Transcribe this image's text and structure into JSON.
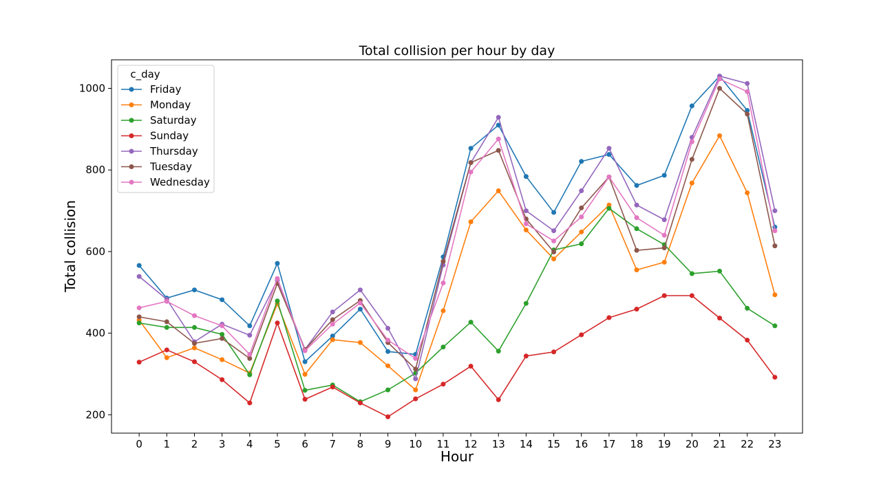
{
  "chart_data": {
    "type": "line",
    "title": "Total collision per hour by day",
    "xlabel": "Hour",
    "ylabel": "Total collision",
    "x": [
      0,
      1,
      2,
      3,
      4,
      5,
      6,
      7,
      8,
      9,
      10,
      11,
      12,
      13,
      14,
      15,
      16,
      17,
      18,
      19,
      20,
      21,
      22,
      23
    ],
    "xlim": [
      -1,
      24
    ],
    "ylim": [
      155,
      1070
    ],
    "yticks": [
      200,
      400,
      600,
      800,
      1000
    ],
    "grid": false,
    "legend": {
      "title": "c_day",
      "position": "upper-left"
    },
    "series": [
      {
        "name": "Friday",
        "color": "#1f77b4",
        "values": [
          566,
          486,
          506,
          482,
          418,
          571,
          330,
          393,
          459,
          355,
          348,
          587,
          853,
          910,
          784,
          696,
          821,
          838,
          762,
          787,
          957,
          1030,
          946,
          660
        ]
      },
      {
        "name": "Monday",
        "color": "#ff7f0e",
        "values": [
          432,
          340,
          364,
          335,
          302,
          472,
          299,
          384,
          377,
          320,
          261,
          455,
          673,
          749,
          653,
          582,
          648,
          714,
          555,
          574,
          768,
          884,
          744,
          494
        ]
      },
      {
        "name": "Saturday",
        "color": "#2ca02c",
        "values": [
          425,
          414,
          414,
          397,
          298,
          479,
          260,
          273,
          232,
          261,
          302,
          366,
          427,
          356,
          473,
          604,
          619,
          706,
          656,
          617,
          546,
          552,
          461,
          418
        ]
      },
      {
        "name": "Sunday",
        "color": "#d62728",
        "values": [
          329,
          359,
          330,
          286,
          229,
          425,
          238,
          268,
          229,
          195,
          239,
          275,
          319,
          237,
          344,
          354,
          396,
          438,
          459,
          492,
          492,
          437,
          383,
          292
        ]
      },
      {
        "name": "Thursday",
        "color": "#9467bd",
        "values": [
          539,
          483,
          379,
          422,
          395,
          530,
          360,
          452,
          506,
          412,
          288,
          567,
          818,
          929,
          700,
          651,
          749,
          853,
          714,
          678,
          880,
          1030,
          1012,
          700
        ]
      },
      {
        "name": "Tuesday",
        "color": "#8c564b",
        "values": [
          440,
          428,
          375,
          387,
          338,
          522,
          360,
          433,
          480,
          377,
          312,
          576,
          818,
          848,
          680,
          599,
          707,
          783,
          603,
          609,
          826,
          1000,
          937,
          614
        ]
      },
      {
        "name": "Wednesday",
        "color": "#e377c2",
        "values": [
          462,
          478,
          443,
          418,
          348,
          534,
          357,
          422,
          474,
          383,
          338,
          523,
          795,
          876,
          668,
          626,
          685,
          783,
          683,
          640,
          869,
          1023,
          992,
          651
        ]
      }
    ]
  }
}
